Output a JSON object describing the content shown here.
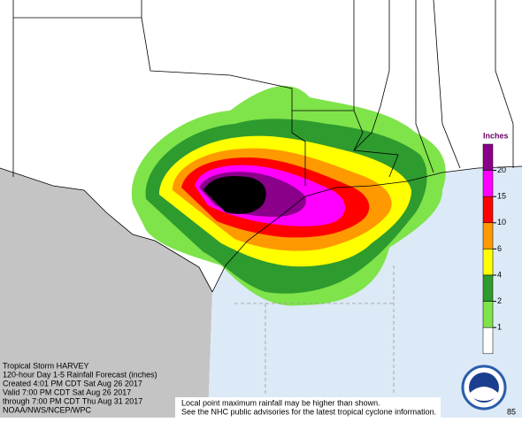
{
  "legend": {
    "title": "Inches",
    "levels": [
      20,
      15,
      10,
      6,
      4,
      2,
      1
    ],
    "colors": [
      "#8b008b",
      "#ff00ff",
      "#ff0000",
      "#ff9900",
      "#ffff00",
      "#2e9b2e",
      "#7fe34a",
      "#ffffff"
    ]
  },
  "caption": [
    "Tropical Storm HARVEY",
    "120-hour Day 1-5 Rainfall Forecast (inches)",
    "Created 4:01 PM CDT Sat Aug 26 2017",
    "Valid 7:00 PM CDT Sat Aug 26 2017",
    "through 7:00 PM CDT Thu Aug 31 2017",
    "NOAA/NWS/NCEP/WPC"
  ],
  "notes": [
    "Local point maximum rainfall may be higher than shown.",
    "See the NHC public advisories for the latest tropical cyclone information."
  ],
  "corner_label": "85"
}
